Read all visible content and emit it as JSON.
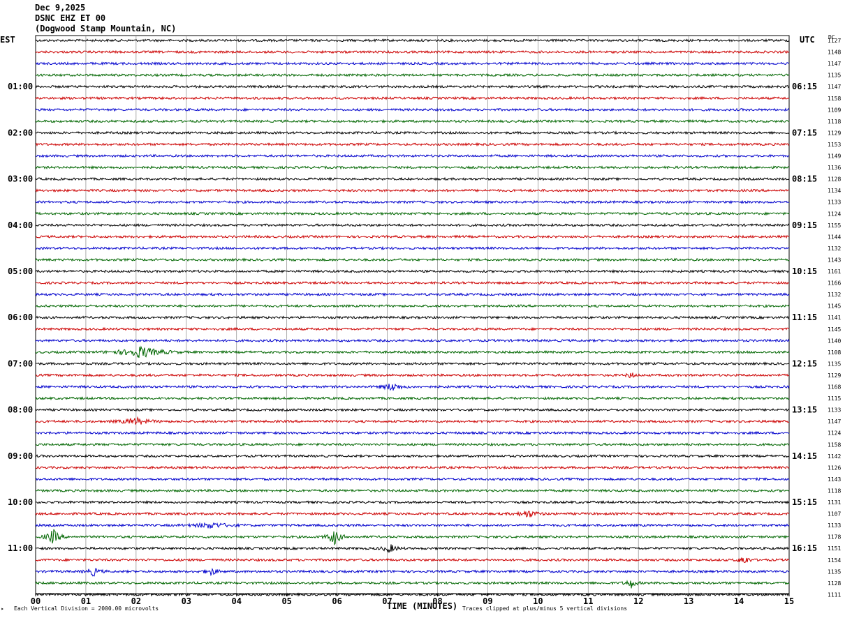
{
  "header": {
    "date": "Dec 9,2025",
    "station": "DSNC EHZ ET 00",
    "location": "(Dogwood Stamp Mountain, NC)"
  },
  "left_axis_label": "EST",
  "right_axis_label": "UTC",
  "dc_label": "DC",
  "footer": {
    "scale_note": "Each Vertical Division = 2000.00 microvolts",
    "clip_note": "Traces clipped at plus/minus 5 vertical divisions",
    "corner_mark": "‣"
  },
  "chart_data": {
    "type": "line",
    "xlabel": "TIME (MINUTES)",
    "xlim": [
      0,
      15
    ],
    "x_ticks": [
      "00",
      "01",
      "02",
      "03",
      "04",
      "05",
      "06",
      "07",
      "08",
      "09",
      "10",
      "11",
      "12",
      "13",
      "14",
      "15"
    ],
    "traces_per_hour": 4,
    "trace_colors": [
      "#000000",
      "#cc0000",
      "#0000cc",
      "#006600"
    ],
    "left_time_labels": [
      "01:00",
      "02:00",
      "03:00",
      "04:00",
      "05:00",
      "06:00",
      "07:00",
      "08:00",
      "09:00",
      "10:00",
      "11:00"
    ],
    "right_time_labels": [
      "06:15",
      "07:15",
      "08:15",
      "09:15",
      "10:15",
      "11:15",
      "12:15",
      "13:15",
      "14:15",
      "15:15",
      "16:15"
    ],
    "dc_values": [
      1127,
      1148,
      1147,
      1135,
      1147,
      1158,
      1109,
      1118,
      1129,
      1153,
      1149,
      1136,
      1128,
      1134,
      1133,
      1124,
      1155,
      1144,
      1132,
      1143,
      1161,
      1166,
      1132,
      1145,
      1141,
      1145,
      1140,
      1108,
      1135,
      1129,
      1168,
      1115,
      1133,
      1147,
      1124,
      1158,
      1142,
      1126,
      1143,
      1118,
      1131,
      1107,
      1133,
      1178,
      1151,
      1154,
      1135,
      1128,
      1111
    ],
    "events": [
      {
        "trace": 27,
        "x": 2.1,
        "amplitude": 8,
        "width": 0.6
      },
      {
        "trace": 29,
        "x": 11.85,
        "amplitude": 5,
        "width": 0.1
      },
      {
        "trace": 30,
        "x": 7.1,
        "amplitude": 6,
        "width": 0.25
      },
      {
        "trace": 33,
        "x": 2.0,
        "amplitude": 5,
        "width": 0.4
      },
      {
        "trace": 41,
        "x": 9.8,
        "amplitude": 5,
        "width": 0.3
      },
      {
        "trace": 42,
        "x": 3.5,
        "amplitude": 4,
        "width": 0.5
      },
      {
        "trace": 43,
        "x": 0.35,
        "amplitude": 11,
        "width": 0.2
      },
      {
        "trace": 43,
        "x": 5.95,
        "amplitude": 11,
        "width": 0.2
      },
      {
        "trace": 44,
        "x": 7.05,
        "amplitude": 6,
        "width": 0.2
      },
      {
        "trace": 45,
        "x": 14.1,
        "amplitude": 7,
        "width": 0.15
      },
      {
        "trace": 46,
        "x": 1.15,
        "amplitude": 6,
        "width": 0.2
      },
      {
        "trace": 46,
        "x": 3.5,
        "amplitude": 5,
        "width": 0.2
      },
      {
        "trace": 47,
        "x": 11.85,
        "amplitude": 7,
        "width": 0.15
      }
    ]
  }
}
